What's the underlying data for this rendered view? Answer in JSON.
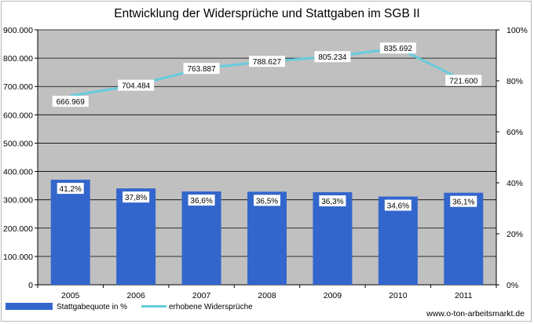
{
  "chart_data": {
    "type": "bar+line",
    "title": "Entwicklung der Widersprüche und Stattgaben im SGB II",
    "categories": [
      "2005",
      "2006",
      "2007",
      "2008",
      "2009",
      "2010",
      "2011"
    ],
    "series": [
      {
        "name": "Stattgabequote in %",
        "type": "bar",
        "axis": "right",
        "values": [
          41.2,
          37.8,
          36.6,
          36.5,
          36.3,
          34.6,
          36.1
        ],
        "labels": [
          "41,2%",
          "37,8%",
          "36,6%",
          "36,5%",
          "36,3%",
          "34,6%",
          "36,1%"
        ],
        "color": "#3366CC"
      },
      {
        "name": "erhobene Widersprüche",
        "type": "line",
        "axis": "left",
        "values": [
          666969,
          704484,
          763887,
          788627,
          805234,
          835692,
          721600
        ],
        "labels": [
          "666.969",
          "704.484",
          "763.887",
          "788.627",
          "805.234",
          "835.692",
          "721.600"
        ],
        "color": "#66CCDD"
      }
    ],
    "y_left": {
      "min": 0,
      "max": 900000,
      "ticks": [
        "0",
        "100.000",
        "200.000",
        "300.000",
        "400.000",
        "500.000",
        "600.000",
        "700.000",
        "800.000",
        "900.000"
      ]
    },
    "y_right": {
      "min": 0,
      "max": 100,
      "ticks": [
        "0%",
        "20%",
        "40%",
        "60%",
        "80%",
        "100%"
      ]
    },
    "plot_background": "#C0C0C0",
    "gridlines": true,
    "legend_position": "bottom-left"
  },
  "source": "www.o-ton-arbeitsmarkt.de"
}
